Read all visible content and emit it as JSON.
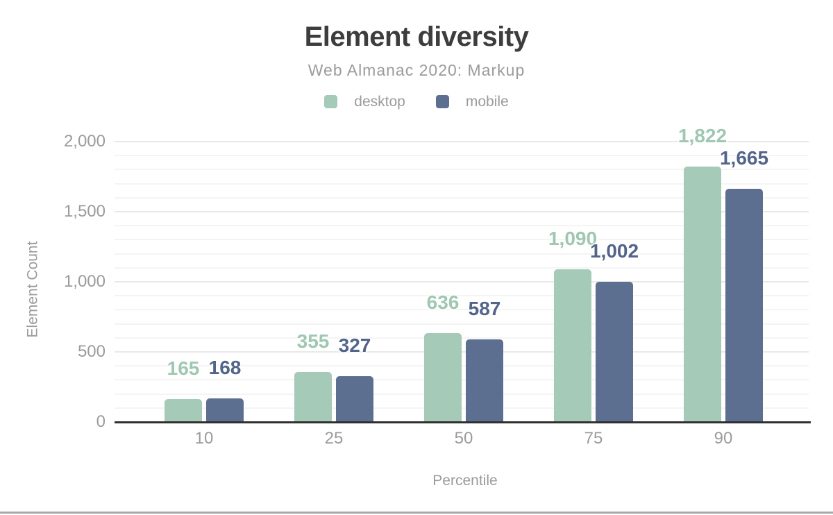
{
  "window": {
    "background": "#ffffff",
    "bottom_divider_color": "#a8a8a8"
  },
  "chart_data": {
    "type": "bar",
    "title": "Element diversity",
    "subtitle": "Web Almanac 2020: Markup",
    "xlabel": "Percentile",
    "ylabel": "Element Count",
    "categories": [
      "10",
      "25",
      "50",
      "75",
      "90"
    ],
    "series": [
      {
        "name": "desktop",
        "bar_color": "#a6cab8",
        "label_color": "#9fc7b2",
        "values": [
          165,
          355,
          636,
          1090,
          1822
        ],
        "value_labels": [
          "165",
          "355",
          "636",
          "1,090",
          "1,822"
        ]
      },
      {
        "name": "mobile",
        "bar_color": "#5d6f90",
        "label_color": "#52648a",
        "values": [
          168,
          327,
          587,
          1002,
          1665
        ],
        "value_labels": [
          "168",
          "327",
          "587",
          "1,002",
          "1,665"
        ]
      }
    ],
    "y_axis": {
      "range": [
        0,
        2000
      ],
      "ticks": [
        {
          "value": 0,
          "label": "0"
        },
        {
          "value": 500,
          "label": "500"
        },
        {
          "value": 1000,
          "label": "1,000"
        },
        {
          "value": 1500,
          "label": "1,500"
        },
        {
          "value": 2000,
          "label": "2,000"
        }
      ]
    },
    "grid": {
      "enabled": true,
      "minor_step": 100,
      "major_step": 500,
      "minor_color": "#f4f4f4",
      "major_color": "#e8e8e8"
    },
    "legend": {
      "position": "top"
    },
    "colors": {
      "title": "#3d3d3d",
      "muted_text": "#9b9b9b",
      "axis_line": "#303030"
    }
  }
}
